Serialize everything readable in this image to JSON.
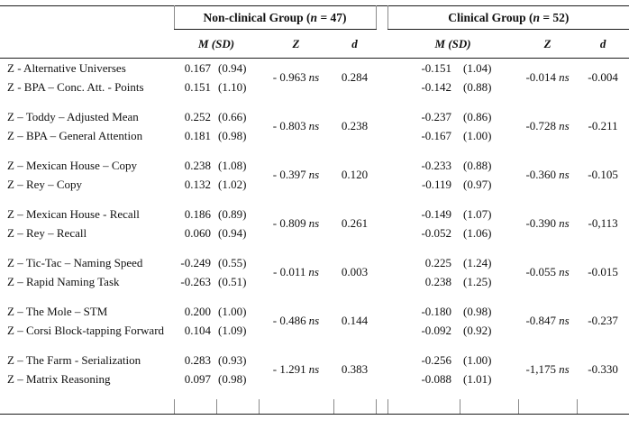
{
  "labels": {
    "ns": "ns"
  },
  "header": {
    "group1": {
      "prefix": "Non-clinical Group (",
      "n": "n",
      "suffix": " = 47)"
    },
    "group2": {
      "prefix": "Clinical Group (",
      "n": "n",
      "suffix": " = 52)"
    },
    "col_msd": "M (SD)",
    "col_z": "Z",
    "col_d": "d"
  },
  "rows": [
    {
      "label1": "Z - Alternative Universes",
      "label2": "Z - BPA – Conc. Att. - Points",
      "nc_m1": "0.167",
      "nc_sd1": "(0.94)",
      "nc_m2": "0.151",
      "nc_sd2": "(1.10)",
      "nc_z": "- 0.963",
      "nc_d": "0.284",
      "c_m1": "-0.151",
      "c_sd1": "(1.04)",
      "c_m2": "-0.142",
      "c_sd2": "(0.88)",
      "c_z": "-0.014",
      "c_d": "-0.004"
    },
    {
      "label1": "Z – Toddy – Adjusted Mean",
      "label2": "Z – BPA – General Attention",
      "nc_m1": "0.252",
      "nc_sd1": "(0.66)",
      "nc_m2": "0.181",
      "nc_sd2": "(0.98)",
      "nc_z": "- 0.803",
      "nc_d": "0.238",
      "c_m1": "-0.237",
      "c_sd1": "(0.86)",
      "c_m2": "-0.167",
      "c_sd2": "(1.00)",
      "c_z": "-0.728",
      "c_d": "-0.211"
    },
    {
      "label1": "Z – Mexican House – Copy",
      "label2": "Z – Rey – Copy",
      "nc_m1": "0.238",
      "nc_sd1": "(1.08)",
      "nc_m2": "0.132",
      "nc_sd2": "(1.02)",
      "nc_z": "- 0.397",
      "nc_d": "0.120",
      "c_m1": "-0.233",
      "c_sd1": "(0.88)",
      "c_m2": "-0.119",
      "c_sd2": "(0.97)",
      "c_z": "-0.360",
      "c_d": "-0.105"
    },
    {
      "label1": "Z – Mexican House - Recall",
      "label2": "Z – Rey – Recall",
      "nc_m1": "0.186",
      "nc_sd1": "(0.89)",
      "nc_m2": "0.060",
      "nc_sd2": "(0.94)",
      "nc_z": "- 0.809",
      "nc_d": "0.261",
      "c_m1": "-0.149",
      "c_sd1": "(1.07)",
      "c_m2": "-0.052",
      "c_sd2": "(1.06)",
      "c_z": "-0.390",
      "c_d": "-0,113"
    },
    {
      "label1": "Z – Tic-Tac – Naming Speed",
      "label2": "Z – Rapid Naming Task",
      "nc_m1": "-0.249",
      "nc_sd1": "(0.55)",
      "nc_m2": "-0.263",
      "nc_sd2": "(0.51)",
      "nc_z": "- 0.011",
      "nc_d": "0.003",
      "c_m1": "0.225",
      "c_sd1": "(1.24)",
      "c_m2": "0.238",
      "c_sd2": "(1.25)",
      "c_z": "-0.055",
      "c_d": "-0.015"
    },
    {
      "label1": "Z – The Mole – STM",
      "label2": "Z – Corsi Block-tapping Forward",
      "nc_m1": "0.200",
      "nc_sd1": "(1.00)",
      "nc_m2": "0.104",
      "nc_sd2": "(1.09)",
      "nc_z": "- 0.486",
      "nc_d": "0.144",
      "c_m1": "-0.180",
      "c_sd1": "(0.98)",
      "c_m2": "-0.092",
      "c_sd2": "(0.92)",
      "c_z": "-0.847",
      "c_d": "-0.237"
    },
    {
      "label1": "Z – The Farm - Serialization",
      "label2": "Z – Matrix Reasoning",
      "nc_m1": "0.283",
      "nc_sd1": "(0.93)",
      "nc_m2": "0.097",
      "nc_sd2": "(0.98)",
      "nc_z": "- 1.291",
      "nc_d": "0.383",
      "c_m1": "-0.256",
      "c_sd1": "(1.00)",
      "c_m2": "-0.088",
      "c_sd2": "(1.01)",
      "c_z": "-1,175",
      "c_d": "-0.330"
    }
  ]
}
